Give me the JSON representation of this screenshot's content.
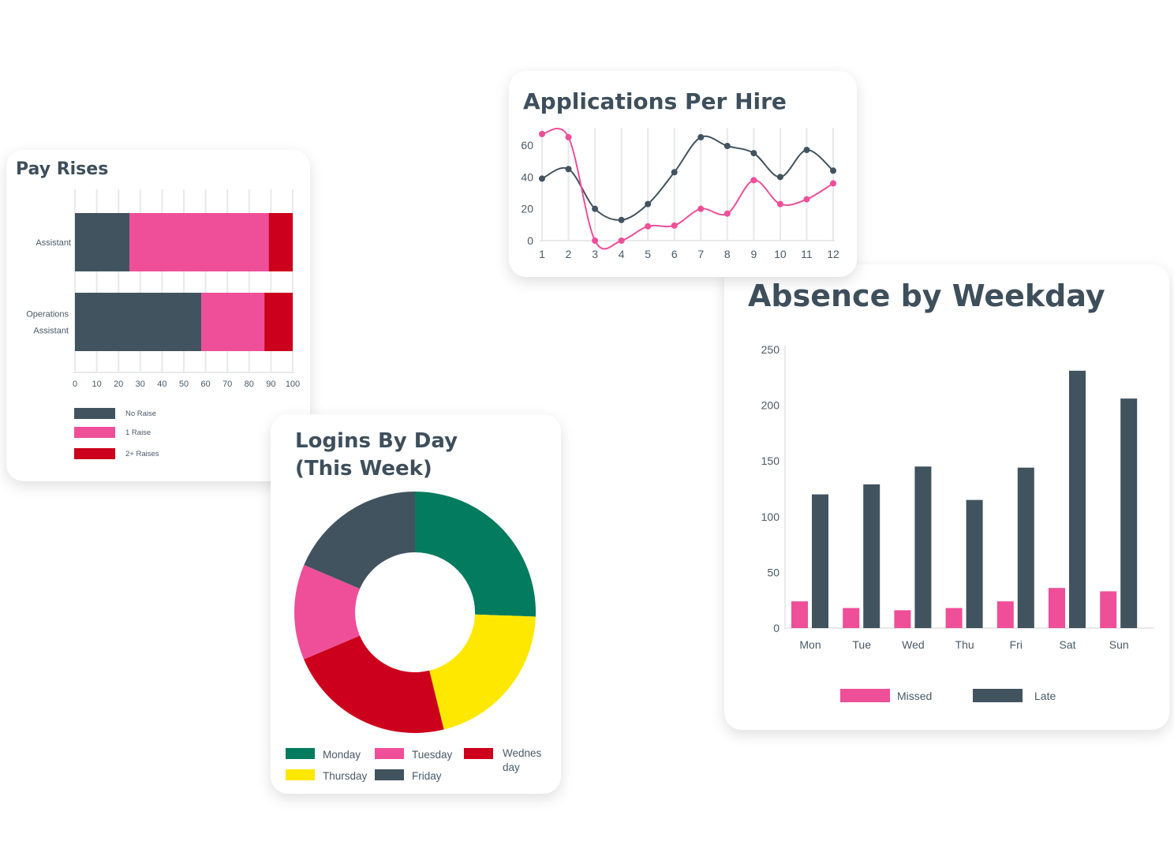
{
  "colors": {
    "dark": "#41535f",
    "pink": "#ef4f98",
    "red": "#cc001c",
    "green": "#027b5e",
    "yellow": "#ffe800",
    "grid": "#e8e9eb"
  },
  "chart_data": [
    {
      "id": "pay_rises",
      "type": "bar",
      "orientation": "horizontal",
      "stacked": true,
      "title": "Pay Rises",
      "categories": [
        "Assistant",
        "Operations Assistant"
      ],
      "category_lines": [
        [
          "Assistant"
        ],
        [
          "Operations",
          "Assistant"
        ]
      ],
      "series": [
        {
          "name": "No Raise",
          "color": "#41535f",
          "values": [
            25,
            58
          ]
        },
        {
          "name": "1 Raise",
          "color": "#ef4f98",
          "values": [
            64,
            29
          ]
        },
        {
          "name": "2+ Raises",
          "color": "#cc001c",
          "values": [
            11,
            13
          ]
        }
      ],
      "xlim": [
        0,
        100
      ],
      "xticks": [
        "0",
        "10",
        "20",
        "30",
        "40",
        "50",
        "60",
        "70",
        "80",
        "90",
        "100"
      ],
      "grid": true,
      "legend": "bottom"
    },
    {
      "id": "applications",
      "type": "line",
      "smooth": true,
      "title": "Applications Per Hire",
      "x": [
        1,
        2,
        3,
        4,
        5,
        6,
        7,
        8,
        9,
        10,
        11,
        12
      ],
      "series": [
        {
          "color": "#41535f",
          "values": [
            39,
            45,
            20,
            13,
            23,
            43,
            65,
            59.5,
            55,
            40,
            57,
            44
          ]
        },
        {
          "color": "#ef4f98",
          "values": [
            67,
            65,
            0,
            0,
            9,
            9.5,
            20,
            17,
            38,
            23,
            26,
            36
          ]
        }
      ],
      "ylim": [
        0,
        60
      ],
      "yticks": [
        "0",
        "20",
        "40",
        "60"
      ],
      "xticks": [
        "1",
        "2",
        "3",
        "4",
        "5",
        "6",
        "7",
        "8",
        "9",
        "10",
        "11",
        "12"
      ],
      "grid": true
    },
    {
      "id": "logins",
      "type": "pie",
      "donut": true,
      "title_lines": [
        "Logins By Day",
        "(This Week)"
      ],
      "slices": [
        {
          "name": "Monday",
          "color": "#027b5e",
          "value": 25.6
        },
        {
          "name": "Tuesday",
          "color": "#ef4f98",
          "value": 12.8
        },
        {
          "name": "Wednesday",
          "color": "#cc001c",
          "value": 22.5
        },
        {
          "name": "Thursday",
          "color": "#ffe800",
          "value": 20.6
        },
        {
          "name": "Friday",
          "color": "#41535f",
          "value": 18.6
        }
      ],
      "clockwise_order": [
        "Monday",
        "Thursday",
        "Wednesday",
        "Tuesday",
        "Friday"
      ],
      "legend_labels": [
        [
          "Monday"
        ],
        [
          "Tuesday"
        ],
        [
          "Wednes",
          "day"
        ],
        [
          "Thursday"
        ],
        [
          "Friday"
        ]
      ],
      "legend": "bottom"
    },
    {
      "id": "absence",
      "type": "bar",
      "title": "Absence by Weekday",
      "categories": [
        "Mon",
        "Tue",
        "Wed",
        "Thu",
        "Fri",
        "Sat",
        "Sun"
      ],
      "series": [
        {
          "name": "Missed",
          "color": "#ef4f98",
          "values": [
            24,
            18,
            16,
            18,
            24,
            36,
            33
          ]
        },
        {
          "name": "Late",
          "color": "#41535f",
          "values": [
            120,
            129,
            145,
            115,
            144,
            231,
            206
          ]
        }
      ],
      "ylim": [
        0,
        250
      ],
      "yticks": [
        "0",
        "50",
        "100",
        "150",
        "200",
        "250"
      ],
      "grid": false,
      "legend": "bottom"
    }
  ]
}
